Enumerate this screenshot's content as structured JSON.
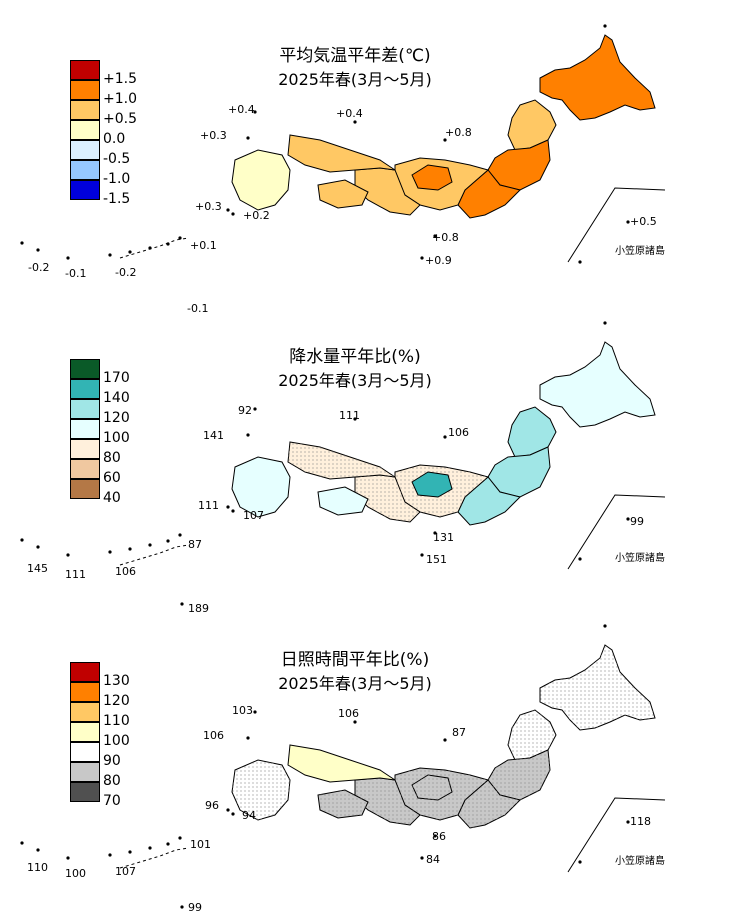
{
  "panels": [
    {
      "title": "平均気温平年差(℃)",
      "subtitle": "2025年春(3月～5月)",
      "legend": [
        "+1.5",
        "+1.0",
        "+0.5",
        "0.0",
        "-0.5",
        "-1.0",
        "-1.5"
      ],
      "legend_colors": [
        "#c00000",
        "#ff8000",
        "#ffc864",
        "#ffffc8",
        "#dcf0ff",
        "#96c8ff",
        "#0000dc"
      ],
      "region_colors": {
        "hokkaido": "#ff8000",
        "tohoku_n": "#ffc864",
        "tohoku_s": "#ff8000",
        "kanto": "#ff8000",
        "chubu": "#ffc864",
        "chubu_core": "#ff8000",
        "kinki": "#ffc864",
        "chugoku": "#ffc864",
        "shikoku": "#ffc864",
        "kyushu": "#ffffc8"
      },
      "labels": {
        "l1": "+0.4",
        "l2": "+0.4",
        "l3": "+0.3",
        "l4": "+0.8",
        "l5": "+0.3",
        "l6": "+0.2",
        "l7": "+0.8",
        "l8": "+0.9",
        "l9": "+0.5",
        "l10": "+0.1",
        "l11": "-0.2",
        "l12": "-0.1",
        "l13": "-0.2",
        "l14": "-0.1"
      },
      "island_label": "小笠原諸島"
    },
    {
      "title": "降水量平年比(%)",
      "subtitle": "2025年春(3月～5月)",
      "legend": [
        "170",
        "140",
        "120",
        "100",
        "80",
        "60",
        "40"
      ],
      "legend_colors": [
        "#0a5a28",
        "#32b4b4",
        "#a0e6e6",
        "#e6ffff",
        "#fff0dc",
        "#f0c8a0",
        "#b47846"
      ],
      "region_colors": {
        "hokkaido": "#e6ffff",
        "tohoku_n": "#a0e6e6",
        "tohoku_s": "#a0e6e6",
        "kanto": "#a0e6e6",
        "chubu": "#fff0dc",
        "chubu_core": "#32b4b4",
        "kinki": "#fff0dc",
        "chugoku": "#fff0dc",
        "shikoku": "#e6ffff",
        "kyushu": "#e6ffff"
      },
      "labels": {
        "l1": "92",
        "l2": "111",
        "l3": "141",
        "l4": "106",
        "l5": "111",
        "l6": "107",
        "l7": "131",
        "l8": "151",
        "l9": "99",
        "l10": "87",
        "l11": "145",
        "l12": "111",
        "l13": "106",
        "l14": "189"
      },
      "island_label": "小笠原諸島"
    },
    {
      "title": "日照時間平年比(%)",
      "subtitle": "2025年春(3月～5月)",
      "legend": [
        "130",
        "120",
        "110",
        "100",
        "90",
        "80",
        "70"
      ],
      "legend_colors": [
        "#c00000",
        "#ff8000",
        "#ffc864",
        "#ffffc8",
        "#ffffff",
        "#c8c8c8",
        "#505050"
      ],
      "region_colors": {
        "hokkaido": "#ffffff",
        "tohoku_n": "#ffffff",
        "tohoku_s": "#c8c8c8",
        "kanto": "#c8c8c8",
        "chubu": "#c8c8c8",
        "chubu_core": "#c8c8c8",
        "kinki": "#c8c8c8",
        "chugoku": "#ffffc8",
        "shikoku": "#c8c8c8",
        "kyushu": "#ffffff"
      },
      "labels": {
        "l1": "103",
        "l2": "106",
        "l3": "106",
        "l4": "87",
        "l5": "96",
        "l6": "94",
        "l7": "86",
        "l8": "84",
        "l9": "118",
        "l10": "101",
        "l11": "110",
        "l12": "100",
        "l13": "107",
        "l14": "99"
      },
      "island_label": "小笠原諸島"
    }
  ]
}
